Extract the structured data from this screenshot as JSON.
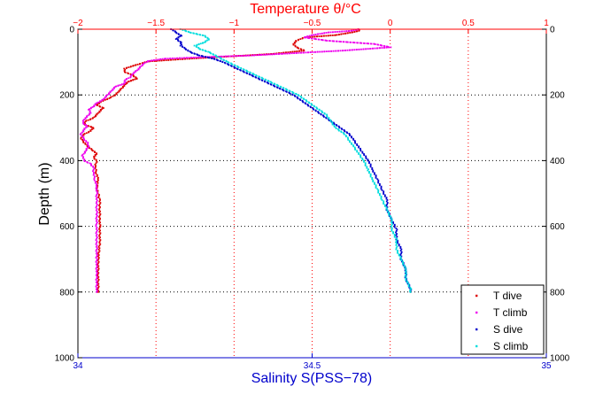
{
  "chart_data": {
    "type": "scatter",
    "title": "Temperature θ/°C",
    "xlabel": "Salinity S(PSS−78)",
    "ylabel": "Depth (m)",
    "x_bottom": {
      "label": "Salinity S(PSS−78)",
      "range": [
        34,
        35
      ],
      "ticks": [
        34,
        34.5,
        35
      ],
      "tick_labels": [
        "34",
        "34.5",
        "35"
      ],
      "color": "#0000cc"
    },
    "x_top": {
      "label": "Temperature θ/°C",
      "range": [
        -2,
        1
      ],
      "ticks": [
        -2,
        -1.5,
        -1,
        -0.5,
        0,
        0.5,
        1
      ],
      "tick_labels": [
        "−2",
        "−1.5",
        "−1",
        "−0.5",
        "0",
        "0.5",
        "1"
      ],
      "color": "#ff0000"
    },
    "y": {
      "label": "Depth (m)",
      "range": [
        0,
        1000
      ],
      "reversed": true,
      "ticks": [
        0,
        200,
        400,
        600,
        800,
        1000
      ],
      "tick_labels": [
        "0",
        "200",
        "400",
        "600",
        "800",
        "1000"
      ]
    },
    "grid": true,
    "legend_position": "bottom-right",
    "series": [
      {
        "name": "T dive",
        "axis": "temperature",
        "color": "#dd0000",
        "points": [
          [
            -0.2,
            0
          ],
          [
            -0.2,
            5
          ],
          [
            -0.25,
            10
          ],
          [
            -0.35,
            18
          ],
          [
            -0.55,
            25
          ],
          [
            -0.6,
            35
          ],
          [
            -0.62,
            45
          ],
          [
            -0.6,
            55
          ],
          [
            -0.55,
            65
          ],
          [
            -0.75,
            75
          ],
          [
            -1.0,
            82
          ],
          [
            -1.3,
            90
          ],
          [
            -1.55,
            98
          ],
          [
            -1.6,
            105
          ],
          [
            -1.65,
            112
          ],
          [
            -1.7,
            120
          ],
          [
            -1.7,
            130
          ],
          [
            -1.65,
            140
          ],
          [
            -1.62,
            150
          ],
          [
            -1.68,
            160
          ],
          [
            -1.7,
            170
          ],
          [
            -1.72,
            180
          ],
          [
            -1.74,
            190
          ],
          [
            -1.76,
            200
          ],
          [
            -1.8,
            210
          ],
          [
            -1.85,
            220
          ],
          [
            -1.88,
            230
          ],
          [
            -1.84,
            240
          ],
          [
            -1.86,
            250
          ],
          [
            -1.88,
            260
          ],
          [
            -1.9,
            270
          ],
          [
            -1.95,
            280
          ],
          [
            -1.96,
            290
          ],
          [
            -1.9,
            300
          ],
          [
            -1.92,
            310
          ],
          [
            -1.96,
            320
          ],
          [
            -1.98,
            330
          ],
          [
            -1.97,
            340
          ],
          [
            -1.95,
            350
          ],
          [
            -1.93,
            360
          ],
          [
            -1.9,
            370
          ],
          [
            -1.88,
            380
          ],
          [
            -1.9,
            390
          ],
          [
            -1.88,
            400
          ],
          [
            -1.89,
            420
          ],
          [
            -1.88,
            440
          ],
          [
            -1.87,
            460
          ],
          [
            -1.88,
            480
          ],
          [
            -1.87,
            500
          ],
          [
            -1.86,
            520
          ],
          [
            -1.86,
            550
          ],
          [
            -1.86,
            580
          ],
          [
            -1.86,
            600
          ],
          [
            -1.86,
            650
          ],
          [
            -1.87,
            700
          ],
          [
            -1.87,
            750
          ],
          [
            -1.87,
            800
          ]
        ]
      },
      {
        "name": "T climb",
        "axis": "temperature",
        "color": "#ee00ee",
        "points": [
          [
            -0.2,
            0
          ],
          [
            -0.25,
            5
          ],
          [
            -0.4,
            10
          ],
          [
            -0.5,
            18
          ],
          [
            -0.55,
            25
          ],
          [
            -0.4,
            35
          ],
          [
            -0.1,
            45
          ],
          [
            0.0,
            55
          ],
          [
            -0.3,
            65
          ],
          [
            -0.7,
            75
          ],
          [
            -0.9,
            80
          ],
          [
            -1.2,
            85
          ],
          [
            -1.45,
            90
          ],
          [
            -1.55,
            97
          ],
          [
            -1.58,
            105
          ],
          [
            -1.6,
            115
          ],
          [
            -1.62,
            125
          ],
          [
            -1.65,
            135
          ],
          [
            -1.66,
            145
          ],
          [
            -1.7,
            155
          ],
          [
            -1.7,
            165
          ],
          [
            -1.76,
            175
          ],
          [
            -1.78,
            185
          ],
          [
            -1.8,
            195
          ],
          [
            -1.82,
            205
          ],
          [
            -1.84,
            215
          ],
          [
            -1.88,
            225
          ],
          [
            -1.9,
            235
          ],
          [
            -1.93,
            245
          ],
          [
            -1.92,
            255
          ],
          [
            -1.94,
            265
          ],
          [
            -1.96,
            275
          ],
          [
            -1.97,
            285
          ],
          [
            -1.94,
            295
          ],
          [
            -1.96,
            305
          ],
          [
            -1.98,
            320
          ],
          [
            -1.96,
            335
          ],
          [
            -1.94,
            345
          ],
          [
            -1.93,
            355
          ],
          [
            -1.95,
            370
          ],
          [
            -1.97,
            385
          ],
          [
            -1.96,
            400
          ],
          [
            -1.92,
            410
          ],
          [
            -1.9,
            420
          ],
          [
            -1.9,
            440
          ],
          [
            -1.89,
            460
          ],
          [
            -1.88,
            480
          ],
          [
            -1.88,
            500
          ],
          [
            -1.88,
            530
          ],
          [
            -1.88,
            560
          ],
          [
            -1.88,
            600
          ],
          [
            -1.88,
            650
          ],
          [
            -1.88,
            700
          ],
          [
            -1.88,
            750
          ],
          [
            -1.88,
            800
          ]
        ]
      },
      {
        "name": "S dive",
        "axis": "salinity",
        "color": "#0000cc",
        "points": [
          [
            34.2,
            0
          ],
          [
            34.21,
            10
          ],
          [
            34.22,
            20
          ],
          [
            34.21,
            30
          ],
          [
            34.22,
            40
          ],
          [
            34.22,
            50
          ],
          [
            34.23,
            60
          ],
          [
            34.24,
            70
          ],
          [
            34.26,
            80
          ],
          [
            34.29,
            90
          ],
          [
            34.31,
            100
          ],
          [
            34.34,
            120
          ],
          [
            34.37,
            140
          ],
          [
            34.4,
            160
          ],
          [
            34.43,
            180
          ],
          [
            34.46,
            200
          ],
          [
            34.48,
            220
          ],
          [
            34.5,
            240
          ],
          [
            34.52,
            260
          ],
          [
            34.54,
            280
          ],
          [
            34.56,
            300
          ],
          [
            34.58,
            320
          ],
          [
            34.59,
            340
          ],
          [
            34.6,
            360
          ],
          [
            34.61,
            380
          ],
          [
            34.62,
            400
          ],
          [
            34.63,
            430
          ],
          [
            34.64,
            460
          ],
          [
            34.65,
            490
          ],
          [
            34.66,
            520
          ],
          [
            34.66,
            550
          ],
          [
            34.67,
            580
          ],
          [
            34.68,
            610
          ],
          [
            34.68,
            640
          ],
          [
            34.69,
            670
          ],
          [
            34.69,
            700
          ],
          [
            34.7,
            730
          ],
          [
            34.7,
            760
          ],
          [
            34.71,
            790
          ],
          [
            34.71,
            800
          ]
        ]
      },
      {
        "name": "S climb",
        "axis": "salinity",
        "color": "#00dddd",
        "points": [
          [
            34.22,
            0
          ],
          [
            34.24,
            10
          ],
          [
            34.27,
            20
          ],
          [
            34.28,
            30
          ],
          [
            34.27,
            40
          ],
          [
            34.25,
            50
          ],
          [
            34.26,
            60
          ],
          [
            34.28,
            70
          ],
          [
            34.3,
            85
          ],
          [
            34.32,
            100
          ],
          [
            34.35,
            120
          ],
          [
            34.38,
            140
          ],
          [
            34.41,
            160
          ],
          [
            34.44,
            180
          ],
          [
            34.47,
            200
          ],
          [
            34.49,
            220
          ],
          [
            34.51,
            240
          ],
          [
            34.53,
            260
          ],
          [
            34.54,
            280
          ],
          [
            34.55,
            300
          ],
          [
            34.57,
            320
          ],
          [
            34.58,
            340
          ],
          [
            34.59,
            360
          ],
          [
            34.6,
            380
          ],
          [
            34.61,
            400
          ],
          [
            34.62,
            430
          ],
          [
            34.63,
            460
          ],
          [
            34.64,
            490
          ],
          [
            34.65,
            520
          ],
          [
            34.66,
            550
          ],
          [
            34.67,
            580
          ],
          [
            34.67,
            610
          ],
          [
            34.68,
            640
          ],
          [
            34.68,
            670
          ],
          [
            34.69,
            700
          ],
          [
            34.7,
            730
          ],
          [
            34.7,
            760
          ],
          [
            34.71,
            790
          ],
          [
            34.71,
            800
          ]
        ]
      }
    ]
  }
}
